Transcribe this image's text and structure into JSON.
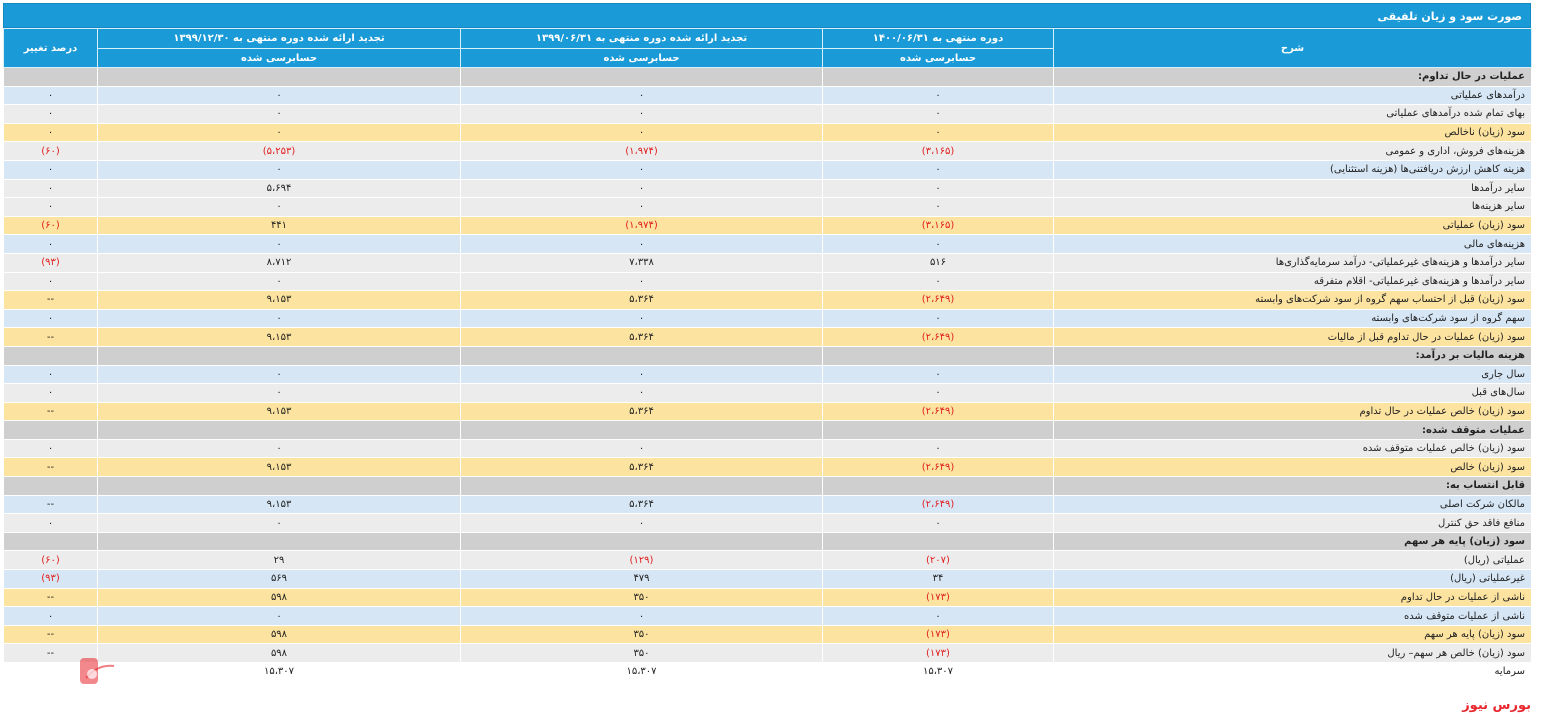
{
  "title": "صورت سود و زیان تلفیقی",
  "header": {
    "desc": "شرح",
    "col1": "دوره منتهی به ۱۴۰۰/۰۶/۳۱",
    "col2": "تجدید ارائه شده دوره منتهی به ۱۳۹۹/۰۶/۳۱",
    "col3": "تجدید ارائه شده دوره منتهی به ۱۳۹۹/۱۲/۳۰",
    "col4": "درصد تغییر",
    "audit1": "حسابرسی شده",
    "audit2": "حسابرسی شده",
    "audit3": "حسابرسی شده"
  },
  "rows": [
    {
      "type": "sec",
      "desc": "عملیات در حال تداوم:",
      "c1": "",
      "c2": "",
      "c3": "",
      "c4": ""
    },
    {
      "type": "blue",
      "desc": "درآمدهای عملیاتی",
      "c1": "۰",
      "c2": "۰",
      "c3": "۰",
      "c4": "۰"
    },
    {
      "type": "grey",
      "desc": "بهای تمام شده درآمدهای عملیاتی",
      "c1": "۰",
      "c2": "۰",
      "c3": "۰",
      "c4": "۰"
    },
    {
      "type": "yellow",
      "desc": "سود (زیان) ناخالص",
      "c1": "۰",
      "c2": "۰",
      "c3": "۰",
      "c4": "۰"
    },
    {
      "type": "grey",
      "desc": "هزینه‌های فروش، اداری و عمومی",
      "c1": "(۳،۱۶۵)",
      "c2": "(۱،۹۷۴)",
      "c3": "(۵،۲۵۳)",
      "c4": "(۶۰)"
    },
    {
      "type": "blue",
      "desc": "هزینه کاهش ارزش دریافتنی‌ها (هزینه استثنایی)",
      "c1": "۰",
      "c2": "۰",
      "c3": "۰",
      "c4": "۰"
    },
    {
      "type": "grey",
      "desc": "سایر درآمدها",
      "c1": "۰",
      "c2": "۰",
      "c3": "۵،۶۹۴",
      "c4": "۰"
    },
    {
      "type": "grey",
      "desc": "سایر هزینه‌ها",
      "c1": "۰",
      "c2": "۰",
      "c3": "۰",
      "c4": "۰"
    },
    {
      "type": "yellow",
      "desc": "سود (زیان) عملیاتی",
      "c1": "(۳،۱۶۵)",
      "c2": "(۱،۹۷۴)",
      "c3": "۴۴۱",
      "c4": "(۶۰)"
    },
    {
      "type": "blue",
      "desc": "هزینه‌های مالی",
      "c1": "۰",
      "c2": "۰",
      "c3": "۰",
      "c4": "۰"
    },
    {
      "type": "grey",
      "desc": "سایر درآمدها و هزینه‌های غیرعملیاتی- درآمد سرمایه‌گذاری‌ها",
      "c1": "۵۱۶",
      "c2": "۷،۳۳۸",
      "c3": "۸،۷۱۲",
      "c4": "(۹۳)"
    },
    {
      "type": "grey",
      "desc": "سایر درآمدها و هزینه‌های غیرعملیاتی- اقلام متفرقه",
      "c1": "۰",
      "c2": "۰",
      "c3": "۰",
      "c4": "۰"
    },
    {
      "type": "yellow",
      "desc": "سود (زیان) قبل از احتساب سهم گروه از سود شرکت‌های وابسته",
      "c1": "(۲،۶۴۹)",
      "c2": "۵،۳۶۴",
      "c3": "۹،۱۵۳",
      "c4": "--"
    },
    {
      "type": "blue",
      "desc": "سهم گروه از سود شرکت‌های وابسته",
      "c1": "۰",
      "c2": "۰",
      "c3": "۰",
      "c4": "۰"
    },
    {
      "type": "yellow",
      "desc": "سود (زیان) عملیات در حال تداوم قبل از مالیات",
      "c1": "(۲،۶۴۹)",
      "c2": "۵،۳۶۴",
      "c3": "۹،۱۵۳",
      "c4": "--"
    },
    {
      "type": "sec",
      "desc": "هزینه مالیات بر درآمد:",
      "c1": "",
      "c2": "",
      "c3": "",
      "c4": ""
    },
    {
      "type": "blue",
      "desc": "سال جاری",
      "c1": "۰",
      "c2": "۰",
      "c3": "۰",
      "c4": "۰"
    },
    {
      "type": "grey",
      "desc": "سال‌های قبل",
      "c1": "۰",
      "c2": "۰",
      "c3": "۰",
      "c4": "۰"
    },
    {
      "type": "yellow",
      "desc": "سود (زیان) خالص عملیات در حال تداوم",
      "c1": "(۲،۶۴۹)",
      "c2": "۵،۳۶۴",
      "c3": "۹،۱۵۳",
      "c4": "--"
    },
    {
      "type": "sec",
      "desc": "عملیات متوقف شده:",
      "c1": "",
      "c2": "",
      "c3": "",
      "c4": ""
    },
    {
      "type": "grey",
      "desc": "سود (زیان) خالص عملیات متوقف شده",
      "c1": "۰",
      "c2": "۰",
      "c3": "۰",
      "c4": "۰"
    },
    {
      "type": "yellow",
      "desc": "سود (زیان) خالص",
      "c1": "(۲،۶۴۹)",
      "c2": "۵،۳۶۴",
      "c3": "۹،۱۵۳",
      "c4": "--"
    },
    {
      "type": "sec",
      "desc": "قابل انتساب به:",
      "c1": "",
      "c2": "",
      "c3": "",
      "c4": ""
    },
    {
      "type": "blue",
      "desc": "مالکان شرکت اصلی",
      "c1": "(۲،۶۴۹)",
      "c2": "۵،۳۶۴",
      "c3": "۹،۱۵۳",
      "c4": "--"
    },
    {
      "type": "grey",
      "desc": "منافع فاقد حق کنترل",
      "c1": "۰",
      "c2": "۰",
      "c3": "۰",
      "c4": "۰"
    },
    {
      "type": "sec",
      "desc": "سود (زیان) پایه هر سهم",
      "c1": "",
      "c2": "",
      "c3": "",
      "c4": ""
    },
    {
      "type": "grey",
      "desc": "عملیاتی (ریال)",
      "c1": "(۲۰۷)",
      "c2": "(۱۲۹)",
      "c3": "۲۹",
      "c4": "(۶۰)"
    },
    {
      "type": "blue",
      "desc": "غیرعملیاتی (ریال)",
      "c1": "۳۴",
      "c2": "۴۷۹",
      "c3": "۵۶۹",
      "c4": "(۹۳)"
    },
    {
      "type": "yellow",
      "desc": "ناشی از عملیات در حال تداوم",
      "c1": "(۱۷۳)",
      "c2": "۳۵۰",
      "c3": "۵۹۸",
      "c4": "--"
    },
    {
      "type": "blue",
      "desc": "ناشی از عملیات متوقف شده",
      "c1": "۰",
      "c2": "۰",
      "c3": "۰",
      "c4": "۰"
    },
    {
      "type": "yellow",
      "desc": "سود (زیان) پایه هر سهم",
      "c1": "(۱۷۳)",
      "c2": "۳۵۰",
      "c3": "۵۹۸",
      "c4": "--"
    },
    {
      "type": "grey",
      "desc": "سود (زیان) خالص هر سهم– ریال",
      "c1": "(۱۷۳)",
      "c2": "۳۵۰",
      "c3": "۵۹۸",
      "c4": "--"
    },
    {
      "type": "last",
      "desc": "سرمایه",
      "c1": "۱۵،۳۰۷",
      "c2": "۱۵،۳۰۷",
      "c3": "۱۵،۳۰۷",
      "c4": ""
    }
  ],
  "watermark": "بورس نیوز"
}
